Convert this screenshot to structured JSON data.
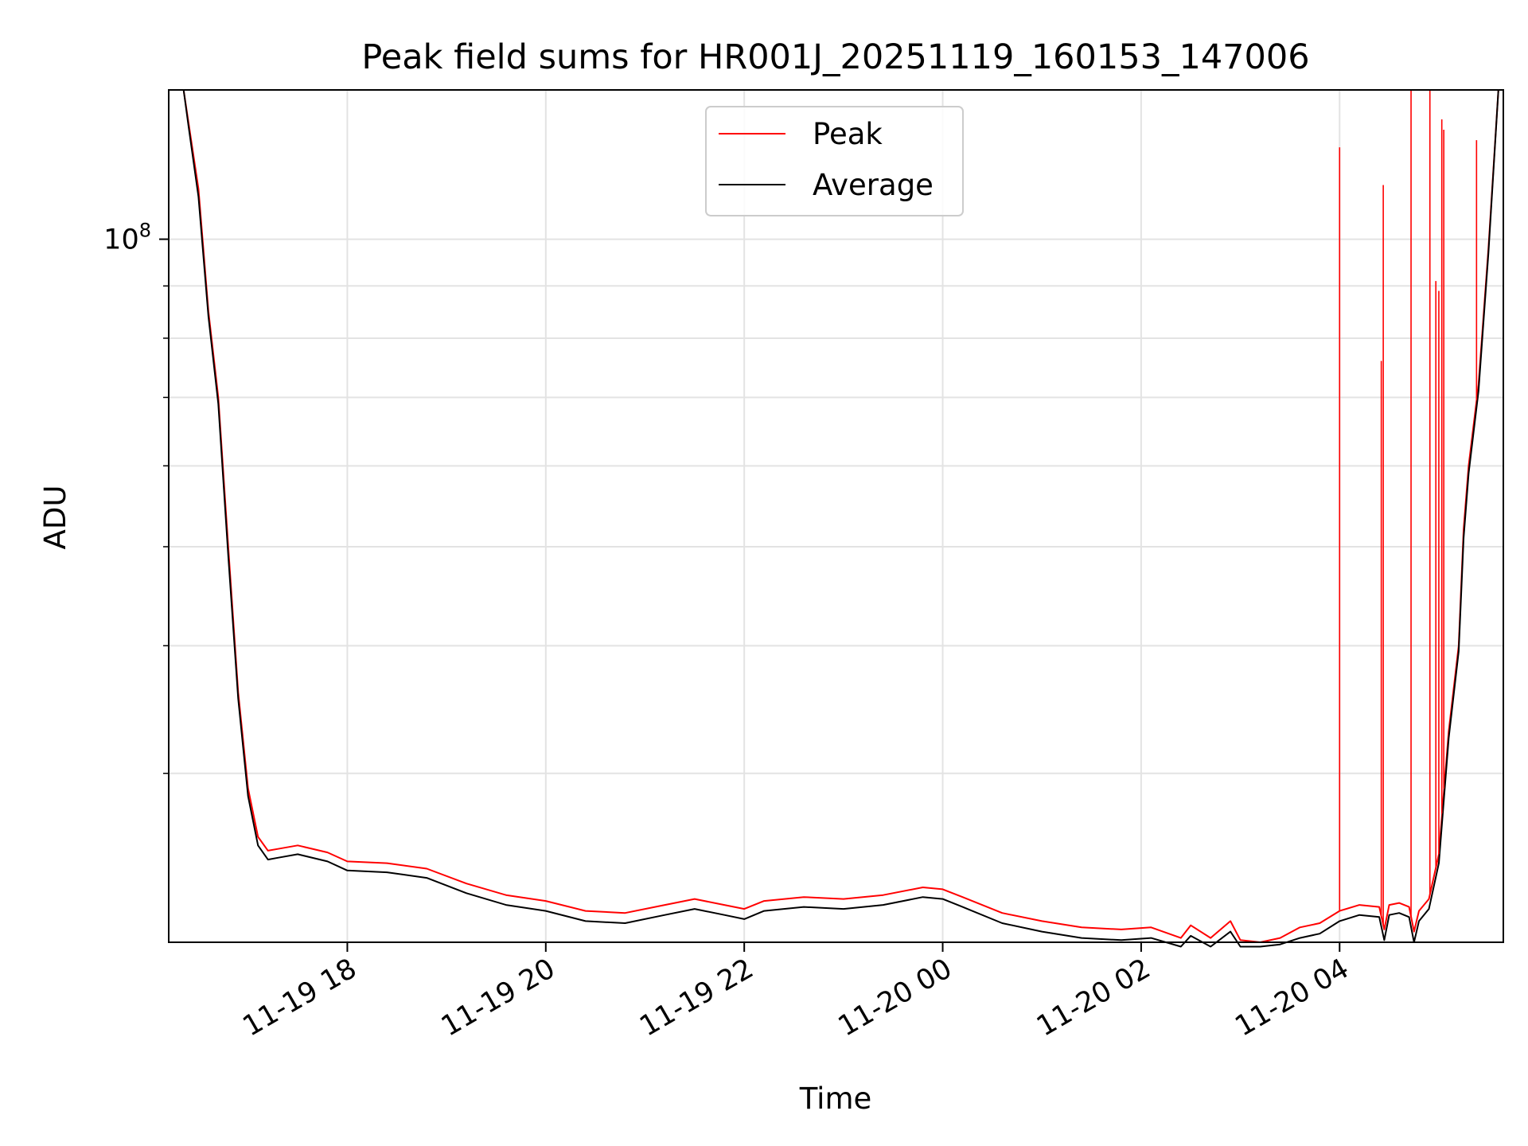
{
  "chart_data": {
    "type": "line",
    "title": "Peak field sums for HR001J_20251119_160153_147006",
    "xlabel": "Time",
    "ylabel": "ADU",
    "yscale": "log",
    "grid": true,
    "legend_position": "top-center",
    "x_unit": "hours since 11-19 16:00",
    "xlim": [
      0.2,
      13.65
    ],
    "ylim": [
      20500000,
      140000000
    ],
    "x_ticks": [
      {
        "value": 2,
        "label": "11-19 18"
      },
      {
        "value": 4,
        "label": "11-19 20"
      },
      {
        "value": 6,
        "label": "11-19 22"
      },
      {
        "value": 8,
        "label": "11-20 00"
      },
      {
        "value": 10,
        "label": "11-20 02"
      },
      {
        "value": 12,
        "label": "11-20 04"
      }
    ],
    "y_ticks": [
      {
        "value": 100000000,
        "base": "10",
        "exponent": "8"
      }
    ],
    "y_minor_ticks": [
      30000000,
      40000000,
      50000000,
      60000000,
      70000000,
      80000000,
      90000000,
      200000000
    ],
    "series": [
      {
        "name": "Peak",
        "color": "#ff0000",
        "x": [
          0.35,
          0.4,
          0.5,
          0.6,
          0.7,
          0.8,
          0.9,
          1.0,
          1.1,
          1.2,
          1.3,
          1.5,
          1.8,
          2.0,
          2.4,
          2.8,
          3.2,
          3.6,
          4.0,
          4.4,
          4.8,
          5.2,
          5.5,
          5.8,
          6.0,
          6.2,
          6.6,
          7.0,
          7.4,
          7.8,
          8.0,
          8.2,
          8.6,
          9.0,
          9.4,
          9.8,
          10.1,
          10.4,
          10.5,
          10.7,
          10.9,
          11.0,
          11.2,
          11.4,
          11.6,
          11.8,
          12.0,
          12.2,
          12.4,
          12.45,
          12.5,
          12.6,
          12.7,
          12.75,
          12.8,
          12.9,
          13.0,
          13.1,
          13.2,
          13.25,
          13.3,
          13.4,
          13.5,
          13.6
        ],
        "values": [
          140000000,
          130000000,
          112000000,
          85000000,
          70000000,
          50000000,
          36000000,
          29000000,
          26000000,
          25200000,
          25300000,
          25500000,
          25100000,
          24600000,
          24500000,
          24200000,
          23400000,
          22800000,
          22500000,
          22000000,
          21900000,
          22300000,
          22600000,
          22300000,
          22100000,
          22500000,
          22700000,
          22600000,
          22800000,
          23200000,
          23100000,
          22700000,
          21900000,
          21500000,
          21200000,
          21100000,
          21200000,
          20700000,
          21300000,
          20700000,
          21500000,
          20600000,
          20500000,
          20700000,
          21200000,
          21400000,
          22000000,
          22300000,
          22200000,
          21100000,
          22300000,
          22400000,
          22200000,
          21000000,
          22000000,
          22600000,
          25000000,
          33000000,
          40000000,
          52000000,
          60000000,
          72000000,
          98000000,
          140000000
        ]
      },
      {
        "name": "Average",
        "color": "#000000",
        "x": [
          0.35,
          0.4,
          0.5,
          0.6,
          0.7,
          0.8,
          0.9,
          1.0,
          1.1,
          1.2,
          1.3,
          1.5,
          1.8,
          2.0,
          2.4,
          2.8,
          3.2,
          3.6,
          4.0,
          4.4,
          4.8,
          5.2,
          5.5,
          5.8,
          6.0,
          6.2,
          6.6,
          7.0,
          7.4,
          7.8,
          8.0,
          8.2,
          8.6,
          9.0,
          9.4,
          9.8,
          10.1,
          10.4,
          10.5,
          10.7,
          10.9,
          11.0,
          11.2,
          11.4,
          11.6,
          11.8,
          12.0,
          12.2,
          12.4,
          12.45,
          12.5,
          12.6,
          12.7,
          12.75,
          12.8,
          12.9,
          13.0,
          13.1,
          13.2,
          13.25,
          13.3,
          13.4,
          13.5,
          13.6
        ],
        "values": [
          140000000,
          129000000,
          110000000,
          84000000,
          69000000,
          49000000,
          35500000,
          28500000,
          25500000,
          24700000,
          24800000,
          25000000,
          24600000,
          24100000,
          24000000,
          23700000,
          22900000,
          22300000,
          22000000,
          21500000,
          21400000,
          21800000,
          22100000,
          21800000,
          21600000,
          22000000,
          22200000,
          22100000,
          22300000,
          22700000,
          22600000,
          22200000,
          21400000,
          21000000,
          20700000,
          20600000,
          20700000,
          20300000,
          20800000,
          20300000,
          21000000,
          20300000,
          20300000,
          20400000,
          20700000,
          20900000,
          21500000,
          21800000,
          21700000,
          20600000,
          21800000,
          21900000,
          21700000,
          20500000,
          21500000,
          22100000,
          24500000,
          32500000,
          39500000,
          51000000,
          59000000,
          71000000,
          97000000,
          140000000
        ]
      }
    ],
    "spikes": [
      {
        "series": "Peak",
        "x": 12.0,
        "peak": 123000000
      },
      {
        "series": "Peak",
        "x": 12.42,
        "peak": 76000000
      },
      {
        "series": "Peak",
        "x": 12.44,
        "peak": 113000000
      },
      {
        "series": "Peak",
        "x": 12.72,
        "peak": 140000000
      },
      {
        "series": "Peak",
        "x": 12.91,
        "peak": 140000000
      },
      {
        "series": "Peak",
        "x": 12.97,
        "peak": 91000000
      },
      {
        "series": "Peak",
        "x": 13.0,
        "peak": 89000000
      },
      {
        "series": "Peak",
        "x": 13.03,
        "peak": 131000000
      },
      {
        "series": "Peak",
        "x": 13.05,
        "peak": 128000000
      },
      {
        "series": "Peak",
        "x": 13.38,
        "peak": 125000000
      }
    ]
  }
}
